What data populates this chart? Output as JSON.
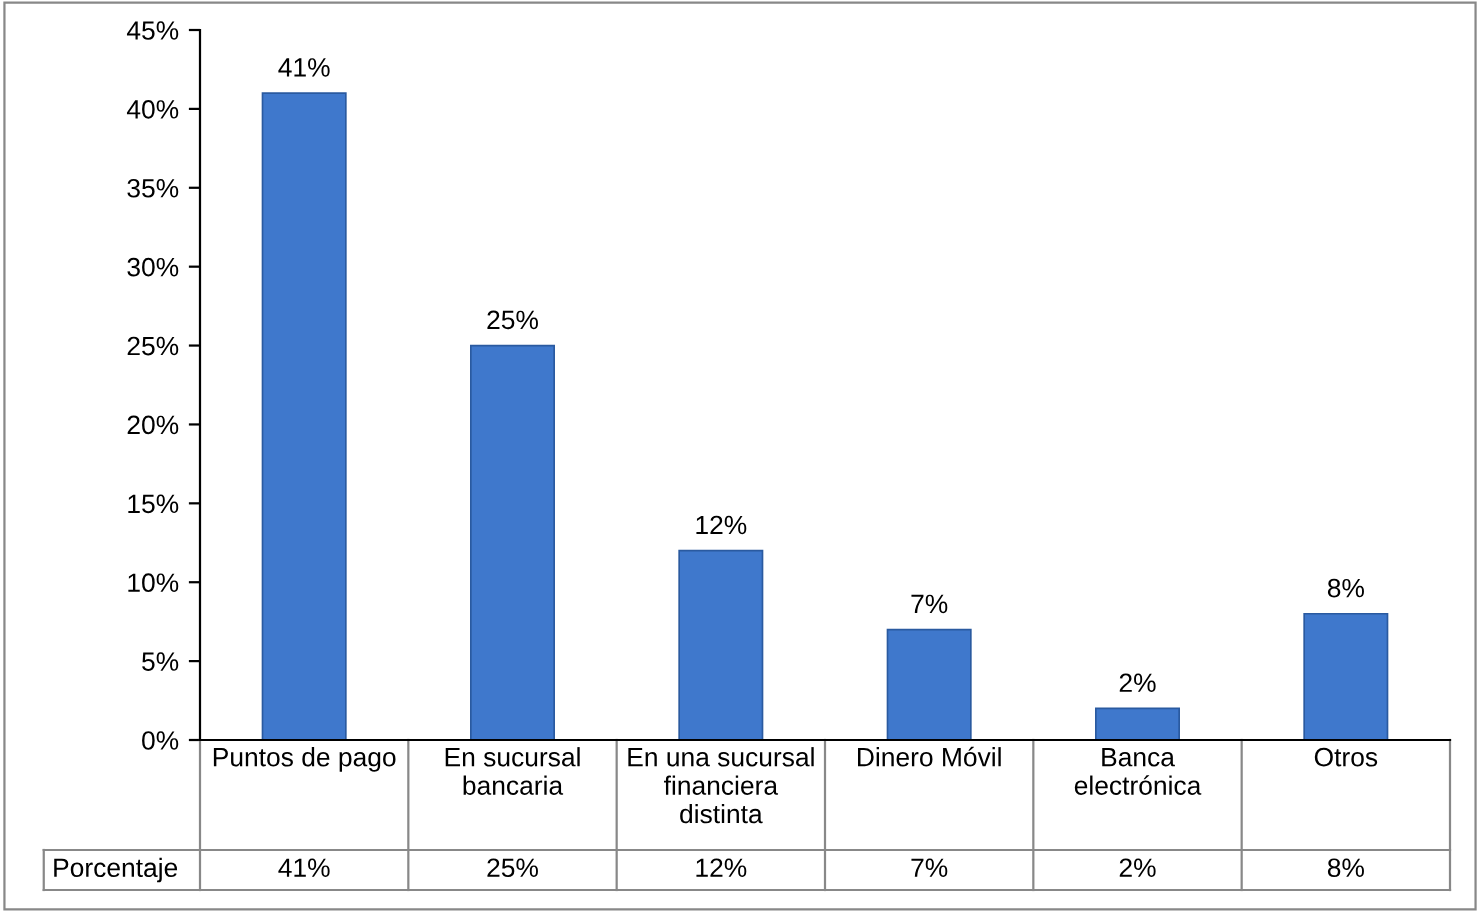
{
  "chart_data": {
    "type": "bar",
    "categories": [
      "Puntos de pago",
      "En sucursal\nbancaria",
      "En una sucursal\nfinanciera\ndistinta",
      "Dinero Móvil",
      "Banca\nelectrónica",
      "Otros"
    ],
    "series": [
      {
        "name": "Porcentaje",
        "color": "#3f78cc",
        "values": [
          41,
          25,
          12,
          7,
          2,
          8
        ],
        "value_labels": [
          "41%",
          "25%",
          "12%",
          "7%",
          "2%",
          "8%"
        ]
      }
    ],
    "ylim": [
      0,
      45
    ],
    "yticks": [
      {
        "value": 0,
        "label": "0%"
      },
      {
        "value": 5,
        "label": "5%"
      },
      {
        "value": 10,
        "label": "10%"
      },
      {
        "value": 15,
        "label": "15%"
      },
      {
        "value": 20,
        "label": "20%"
      },
      {
        "value": 25,
        "label": "25%"
      },
      {
        "value": 30,
        "label": "30%"
      },
      {
        "value": 35,
        "label": "35%"
      },
      {
        "value": 40,
        "label": "40%"
      },
      {
        "value": 45,
        "label": "45%"
      }
    ],
    "grid": false,
    "legend": false
  }
}
